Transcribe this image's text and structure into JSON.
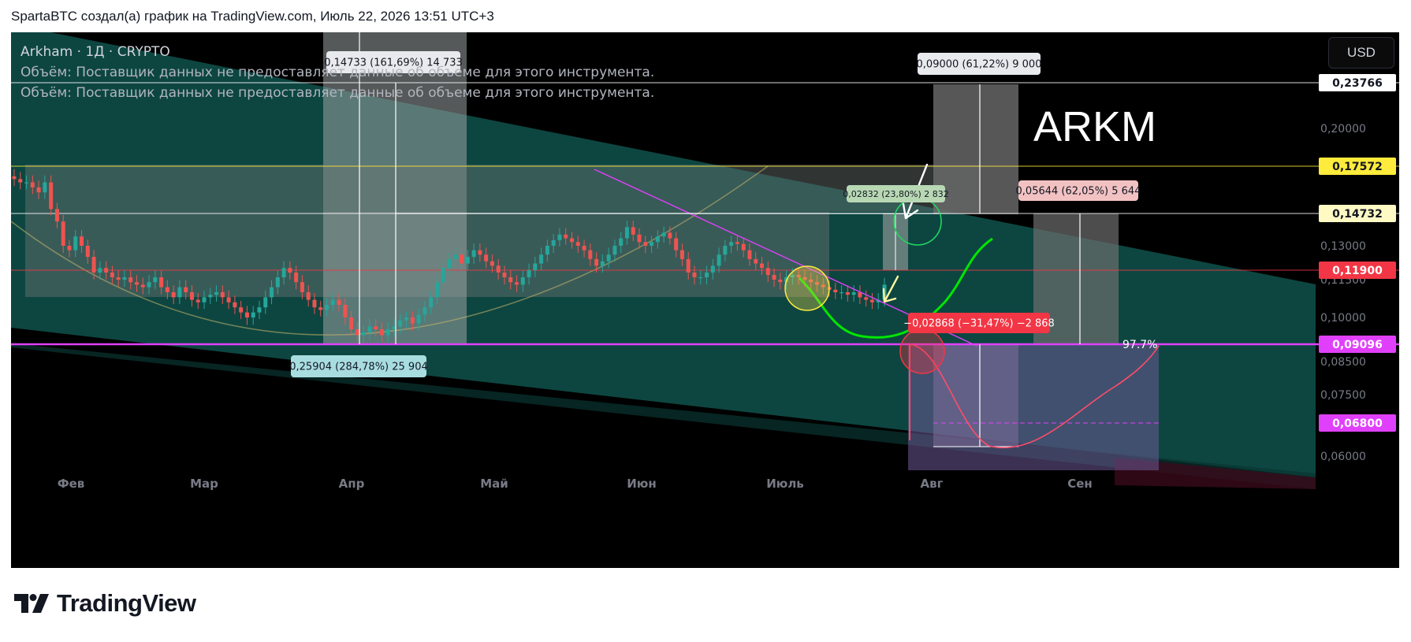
{
  "caption": "SpartaBTC создал(а) график на TradingView.com, Июль 22, 2026 13:51 UTC+3",
  "legend": {
    "symbol": "Arkham · 1Д · CRYPTO",
    "volume_line_1": "Объём: Поставщик данных не предоставляет данные об объеме для этого инструмента.",
    "volume_line_2": "Объём: Поставщик данных не предоставляет данные об объеме для этого инструмента."
  },
  "currency_button": "USD",
  "brand": "TradingView",
  "colors": {
    "background": "#000000",
    "teal_channel": "#0e4a44",
    "bull_candle": "#26a69a",
    "bear_candle": "#ef5350",
    "magenta_support": "#e040fb",
    "yellow_level": "#ffeb3b",
    "green_path": "#00e600",
    "red_path": "#ff4d6a"
  },
  "chart_data": {
    "type": "candlestick",
    "symbol": "ARKM",
    "watermark": "ARKM",
    "price_axis": {
      "ticks": [
        "0,20000",
        "0,13000",
        "0,11500",
        "0,10000",
        "0,08500",
        "0,07500",
        "0,06000"
      ],
      "tick_values": [
        0.2,
        0.13,
        0.115,
        0.1,
        0.085,
        0.075,
        0.06
      ]
    },
    "price_labels": [
      {
        "text": "0,23766",
        "value": 0.23766,
        "bg": "#ffffff",
        "fg": "#131722"
      },
      {
        "text": "0,17572",
        "value": 0.17572,
        "bg": "#ffeb3b",
        "fg": "#131722"
      },
      {
        "text": "0,14732",
        "value": 0.14732,
        "bg": "#fff9c4",
        "fg": "#131722"
      },
      {
        "text": "0,11900",
        "value": 0.119,
        "bg": "#f23645",
        "fg": "#ffffff"
      },
      {
        "text": "0,09096",
        "value": 0.09096,
        "bg": "#e040fb",
        "fg": "#ffffff"
      },
      {
        "text": "0,06800",
        "value": 0.068,
        "bg": "#e040fb",
        "fg": "#ffffff"
      }
    ],
    "percent_marker": "97.7%",
    "time_axis": [
      "Фев",
      "Мар",
      "Апр",
      "Май",
      "Июн",
      "Июль",
      "Авг",
      "Сен"
    ],
    "horizontal_levels": [
      {
        "value": 0.23766,
        "color": "#ffffff"
      },
      {
        "value": 0.17572,
        "color": "#ffeb3b"
      },
      {
        "value": 0.14732,
        "color": "#ffffff"
      },
      {
        "value": 0.119,
        "color": "#f23645"
      },
      {
        "value": 0.09096,
        "color": "#e040fb"
      },
      {
        "value": 0.068,
        "color": "#e040fb"
      }
    ],
    "measurements": [
      {
        "text": "0,14733 (161,69%) 14 733",
        "style": "light"
      },
      {
        "text": "0,25904 (284,78%) 25 904",
        "style": "cyan"
      },
      {
        "text": "0,09000 (61,22%) 9 000",
        "style": "light"
      },
      {
        "text": "0,02832 (23,80%) 2 832",
        "style": "green"
      },
      {
        "text": "0,05644 (62,05%) 5 644",
        "style": "pink"
      },
      {
        "text": "−0,02868 (−31,47%) −2 868",
        "style": "red"
      }
    ],
    "candles_approx_close": [
      0.168,
      0.166,
      0.166,
      0.163,
      0.16,
      0.166,
      0.15,
      0.143,
      0.13,
      0.128,
      0.135,
      0.13,
      0.125,
      0.118,
      0.12,
      0.118,
      0.116,
      0.115,
      0.116,
      0.114,
      0.113,
      0.112,
      0.114,
      0.116,
      0.112,
      0.11,
      0.108,
      0.112,
      0.11,
      0.107,
      0.106,
      0.108,
      0.109,
      0.11,
      0.108,
      0.106,
      0.104,
      0.102,
      0.1,
      0.102,
      0.104,
      0.108,
      0.112,
      0.116,
      0.12,
      0.118,
      0.114,
      0.11,
      0.107,
      0.104,
      0.103,
      0.105,
      0.107,
      0.105,
      0.1,
      0.096,
      0.094,
      0.095,
      0.097,
      0.096,
      0.094,
      0.096,
      0.097,
      0.099,
      0.1,
      0.098,
      0.101,
      0.104,
      0.108,
      0.114,
      0.12,
      0.124,
      0.126,
      0.122,
      0.125,
      0.128,
      0.126,
      0.123,
      0.121,
      0.118,
      0.116,
      0.114,
      0.113,
      0.116,
      0.119,
      0.122,
      0.126,
      0.13,
      0.133,
      0.136,
      0.134,
      0.132,
      0.13,
      0.128,
      0.124,
      0.121,
      0.123,
      0.126,
      0.13,
      0.134,
      0.14,
      0.136,
      0.132,
      0.13,
      0.132,
      0.135,
      0.137,
      0.134,
      0.128,
      0.124,
      0.118,
      0.116,
      0.116,
      0.118,
      0.121,
      0.126,
      0.13,
      0.132,
      0.131,
      0.128,
      0.124,
      0.122,
      0.12,
      0.117,
      0.115,
      0.114,
      0.116,
      0.117,
      0.116,
      0.115,
      0.114,
      0.113,
      0.112,
      0.111,
      0.11,
      0.11,
      0.109,
      0.11,
      0.108,
      0.107,
      0.106,
      0.107,
      0.113
    ],
    "grid": false,
    "legend_position": "top-left"
  }
}
